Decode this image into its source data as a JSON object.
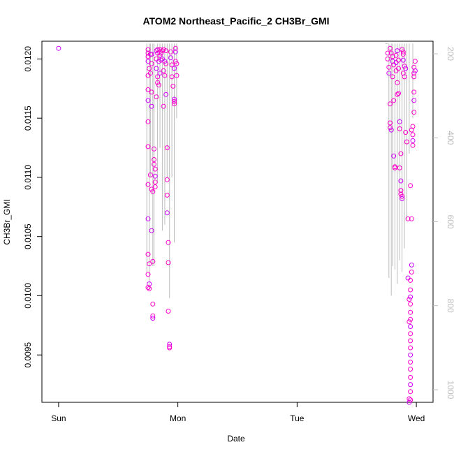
{
  "chart_data": {
    "type": "scatter",
    "title": "ATOM2 Northeast_Pacific_2 CH3Br_GMI",
    "xlabel": "Date",
    "ylabel": "CH3Br_GMI",
    "x_ticks": [
      {
        "value": 0,
        "label": "Sun"
      },
      {
        "value": 1,
        "label": "Mon"
      },
      {
        "value": 2,
        "label": "Tue"
      },
      {
        "value": 3,
        "label": "Wed"
      }
    ],
    "x_range": [
      -0.14,
      3.14
    ],
    "y_ticks": [
      "0.0095",
      "0.0100",
      "0.0105",
      "0.0110",
      "0.0115",
      "0.0120"
    ],
    "y_range": [
      0.0091,
      0.01215
    ],
    "secondary_axis": {
      "label": "",
      "ticks": [
        "200",
        "400",
        "600",
        "800",
        "1000"
      ],
      "range": [
        1030,
        170
      ],
      "reversed": true,
      "color": "#bdbdbd"
    },
    "colors": {
      "points": "#ff00cc",
      "points_alt": "#cc00ff",
      "profile_line": "#bdbdbd"
    },
    "series": [
      {
        "points": [
          [
            0.0,
            0.01209
          ],
          [
            0.75,
            0.01208
          ],
          [
            0.75,
            0.01205
          ],
          [
            0.75,
            0.01202
          ],
          [
            0.75,
            0.01198
          ],
          [
            0.76,
            0.01192
          ],
          [
            0.75,
            0.01186
          ],
          [
            0.75,
            0.01174
          ],
          [
            0.75,
            0.01165
          ],
          [
            0.75,
            0.01147
          ],
          [
            0.75,
            0.01126
          ],
          [
            0.75,
            0.01094
          ],
          [
            0.75,
            0.01065
          ],
          [
            0.75,
            0.01035
          ],
          [
            0.76,
            0.01027
          ],
          [
            0.75,
            0.01018
          ],
          [
            0.76,
            0.0101
          ],
          [
            0.75,
            0.01007
          ],
          [
            0.76,
            0.01006
          ],
          [
            0.77,
            0.01204
          ],
          [
            0.78,
            0.01204
          ],
          [
            0.78,
            0.01196
          ],
          [
            0.77,
            0.01188
          ],
          [
            0.78,
            0.01172
          ],
          [
            0.78,
            0.0116
          ],
          [
            0.77,
            0.01102
          ],
          [
            0.78,
            0.0109
          ],
          [
            0.79,
            0.01088
          ],
          [
            0.78,
            0.01055
          ],
          [
            0.79,
            0.01029
          ],
          [
            0.79,
            0.00993
          ],
          [
            0.79,
            0.00983
          ],
          [
            0.79,
            0.00981
          ],
          [
            0.8,
            0.01115
          ],
          [
            0.8,
            0.01111
          ],
          [
            0.81,
            0.01107
          ],
          [
            0.81,
            0.01101
          ],
          [
            0.81,
            0.01096
          ],
          [
            0.81,
            0.01092
          ],
          [
            0.8,
            0.01124
          ],
          [
            0.82,
            0.01207
          ],
          [
            0.83,
            0.01208
          ],
          [
            0.83,
            0.01205
          ],
          [
            0.82,
            0.012
          ],
          [
            0.82,
            0.01192
          ],
          [
            0.83,
            0.01185
          ],
          [
            0.82,
            0.01168
          ],
          [
            0.83,
            0.0118
          ],
          [
            0.84,
            0.01198
          ],
          [
            0.85,
            0.01208
          ],
          [
            0.85,
            0.01203
          ],
          [
            0.84,
            0.01178
          ],
          [
            0.85,
            0.01188
          ],
          [
            0.86,
            0.01205
          ],
          [
            0.86,
            0.01199
          ],
          [
            0.87,
            0.01207
          ],
          [
            0.87,
            0.012
          ],
          [
            0.88,
            0.0119
          ],
          [
            0.88,
            0.0116
          ],
          [
            0.88,
            0.01208
          ],
          [
            0.89,
            0.01198
          ],
          [
            0.9,
            0.01207
          ],
          [
            0.9,
            0.01196
          ],
          [
            0.89,
            0.01186
          ],
          [
            0.9,
            0.0117
          ],
          [
            0.91,
            0.01125
          ],
          [
            0.91,
            0.01098
          ],
          [
            0.91,
            0.01085
          ],
          [
            0.91,
            0.0107
          ],
          [
            0.92,
            0.01045
          ],
          [
            0.92,
            0.01028
          ],
          [
            0.92,
            0.00987
          ],
          [
            0.93,
            0.00959
          ],
          [
            0.93,
            0.00957
          ],
          [
            0.93,
            0.00956
          ],
          [
            0.94,
            0.01206
          ],
          [
            0.94,
            0.01201
          ],
          [
            0.95,
            0.01195
          ],
          [
            0.95,
            0.01185
          ],
          [
            0.96,
            0.01177
          ],
          [
            0.97,
            0.01166
          ],
          [
            0.97,
            0.01164
          ],
          [
            0.97,
            0.01162
          ],
          [
            0.98,
            0.01209
          ],
          [
            0.98,
            0.01206
          ],
          [
            0.98,
            0.01198
          ],
          [
            0.99,
            0.01196
          ],
          [
            0.99,
            0.01186
          ],
          [
            0.97,
            0.01192
          ],
          [
            2.76,
            0.01205
          ],
          [
            2.76,
            0.012
          ],
          [
            2.77,
            0.01193
          ],
          [
            2.77,
            0.01188
          ],
          [
            2.78,
            0.01162
          ],
          [
            2.78,
            0.01146
          ],
          [
            2.78,
            0.01142
          ],
          [
            2.79,
            0.0114
          ],
          [
            2.78,
            0.01209
          ],
          [
            2.79,
            0.01205
          ],
          [
            2.8,
            0.01202
          ],
          [
            2.8,
            0.01198
          ],
          [
            2.81,
            0.01195
          ],
          [
            2.8,
            0.01185
          ],
          [
            2.81,
            0.01165
          ],
          [
            2.81,
            0.01118
          ],
          [
            2.82,
            0.01108
          ],
          [
            2.82,
            0.01109
          ],
          [
            2.83,
            0.01203
          ],
          [
            2.83,
            0.01197
          ],
          [
            2.83,
            0.0119
          ],
          [
            2.84,
            0.0118
          ],
          [
            2.84,
            0.0117
          ],
          [
            2.84,
            0.01207
          ],
          [
            2.85,
            0.01199
          ],
          [
            2.85,
            0.01192
          ],
          [
            2.85,
            0.01171
          ],
          [
            2.86,
            0.01147
          ],
          [
            2.86,
            0.01141
          ],
          [
            2.86,
            0.01108
          ],
          [
            2.87,
            0.0112
          ],
          [
            2.87,
            0.01097
          ],
          [
            2.87,
            0.01089
          ],
          [
            2.87,
            0.01086
          ],
          [
            2.88,
            0.01084
          ],
          [
            2.88,
            0.01082
          ],
          [
            2.88,
            0.01208
          ],
          [
            2.89,
            0.01206
          ],
          [
            2.89,
            0.01204
          ],
          [
            2.89,
            0.01199
          ],
          [
            2.89,
            0.01188
          ],
          [
            2.9,
            0.01194
          ],
          [
            2.9,
            0.01185
          ],
          [
            2.91,
            0.01192
          ],
          [
            2.91,
            0.01138
          ],
          [
            2.92,
            0.0113
          ],
          [
            2.93,
            0.01065
          ],
          [
            2.93,
            0.01015
          ],
          [
            2.94,
            0.00997
          ],
          [
            2.94,
            0.00978
          ],
          [
            2.94,
            0.00913
          ],
          [
            2.94,
            0.0091
          ],
          [
            2.95,
            0.00912
          ],
          [
            2.95,
            0.01093
          ],
          [
            2.96,
            0.01065
          ],
          [
            2.96,
            0.01026
          ],
          [
            2.96,
            0.0102
          ],
          [
            2.95,
            0.01013
          ],
          [
            2.95,
            0.01005
          ],
          [
            2.95,
            0.00999
          ],
          [
            2.95,
            0.00993
          ],
          [
            2.95,
            0.00986
          ],
          [
            2.95,
            0.0098
          ],
          [
            2.95,
            0.00974
          ],
          [
            2.95,
            0.00968
          ],
          [
            2.95,
            0.00962
          ],
          [
            2.95,
            0.00956
          ],
          [
            2.95,
            0.0095
          ],
          [
            2.95,
            0.00944
          ],
          [
            2.95,
            0.00938
          ],
          [
            2.95,
            0.00931
          ],
          [
            2.95,
            0.00925
          ],
          [
            2.95,
            0.00919
          ],
          [
            2.96,
            0.0114
          ],
          [
            2.97,
            0.01136
          ],
          [
            2.97,
            0.01131
          ],
          [
            2.97,
            0.01127
          ],
          [
            2.97,
            0.01143
          ],
          [
            2.98,
            0.01155
          ],
          [
            2.98,
            0.01165
          ],
          [
            2.98,
            0.01172
          ],
          [
            2.98,
            0.01185
          ],
          [
            2.98,
            0.01188
          ],
          [
            2.99,
            0.0119
          ],
          [
            2.99,
            0.01198
          ],
          [
            2.98,
            0.01193
          ]
        ]
      }
    ],
    "profile_segments": [
      [
        [
          0.74,
          0.01213
        ],
        [
          0.74,
          0.0102
        ]
      ],
      [
        [
          0.76,
          0.01213
        ],
        [
          0.76,
          0.01005
        ]
      ],
      [
        [
          0.77,
          0.01213
        ],
        [
          0.77,
          0.011
        ]
      ],
      [
        [
          0.79,
          0.01213
        ],
        [
          0.79,
          0.01025
        ]
      ],
      [
        [
          0.8,
          0.01213
        ],
        [
          0.8,
          0.01025
        ]
      ],
      [
        [
          0.83,
          0.01213
        ],
        [
          0.83,
          0.01095
        ]
      ],
      [
        [
          0.85,
          0.01213
        ],
        [
          0.85,
          0.01125
        ]
      ],
      [
        [
          0.87,
          0.01213
        ],
        [
          0.87,
          0.01055
        ]
      ],
      [
        [
          0.89,
          0.01213
        ],
        [
          0.89,
          0.0106
        ]
      ],
      [
        [
          0.91,
          0.01213
        ],
        [
          0.91,
          0.011
        ]
      ],
      [
        [
          0.93,
          0.01213
        ],
        [
          0.93,
          0.00998
        ]
      ],
      [
        [
          0.95,
          0.01213
        ],
        [
          0.95,
          0.011
        ]
      ],
      [
        [
          0.97,
          0.01213
        ],
        [
          0.97,
          0.01045
        ]
      ],
      [
        [
          0.99,
          0.01213
        ],
        [
          0.99,
          0.0115
        ]
      ],
      [
        [
          2.74,
          0.01213
        ],
        [
          2.76,
          0.01213
        ]
      ],
      [
        [
          2.77,
          0.01213
        ],
        [
          2.77,
          0.01015
        ]
      ],
      [
        [
          2.79,
          0.01213
        ],
        [
          2.79,
          0.01
        ]
      ],
      [
        [
          2.8,
          0.01213
        ],
        [
          2.8,
          0.01025
        ]
      ],
      [
        [
          2.82,
          0.01213
        ],
        [
          2.82,
          0.01022
        ]
      ],
      [
        [
          2.84,
          0.01213
        ],
        [
          2.84,
          0.0101
        ]
      ],
      [
        [
          2.86,
          0.01213
        ],
        [
          2.86,
          0.0103
        ]
      ],
      [
        [
          2.88,
          0.01213
        ],
        [
          2.88,
          0.0102
        ]
      ],
      [
        [
          2.9,
          0.01213
        ],
        [
          2.9,
          0.0104
        ]
      ],
      [
        [
          2.92,
          0.01213
        ],
        [
          2.92,
          0.01065
        ]
      ],
      [
        [
          2.94,
          0.01213
        ],
        [
          2.94,
          0.0112
        ]
      ],
      [
        [
          2.97,
          0.01213
        ],
        [
          2.97,
          0.0115
        ]
      ]
    ]
  }
}
